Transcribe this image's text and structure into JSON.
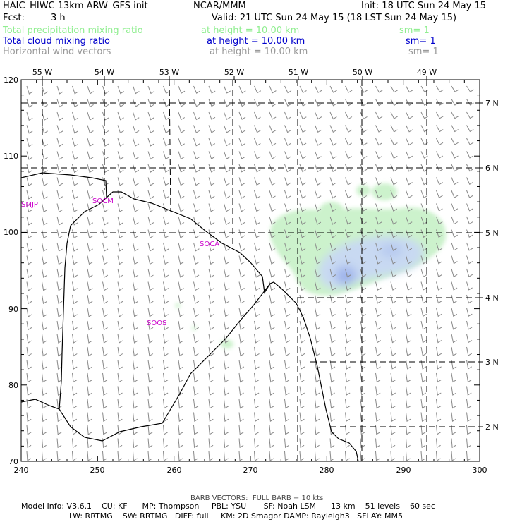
{
  "header": {
    "model_title": "HAIC–HIWC 13km ARW–GFS init",
    "org": "NCAR/MMM",
    "init": "Init: 18 UTC Sun 24 May 15",
    "fcst_label": "Fcst:",
    "fcst_value": "3 h",
    "valid": "Valid: 21 UTC Sun 24 May 15 (18 LST Sun 24 May 15)"
  },
  "fields": [
    {
      "name": "Total precipitation mixing ratio",
      "height": "at height = 10.00 km",
      "sm": "sm= 1",
      "color": "#90ee90"
    },
    {
      "name": "Total cloud mixing ratio",
      "height": "at height = 10.00 km",
      "sm": "sm= 1",
      "color": "#0000cc"
    },
    {
      "name": "Horizontal wind vectors",
      "height": "at height = 10.00 km",
      "sm": "sm= 1",
      "color": "#999999"
    }
  ],
  "map": {
    "x_ticks": [
      "240",
      "250",
      "260",
      "270",
      "280",
      "290",
      "300"
    ],
    "y_ticks": [
      "70",
      "80",
      "90",
      "100",
      "110",
      "120"
    ],
    "lon_labels": [
      "55 W",
      "54 W",
      "53 W",
      "52 W",
      "51 W",
      "50 W",
      "49 W"
    ],
    "lat_labels": [
      "7 N",
      "6 N",
      "5 N",
      "4 N",
      "3 N",
      "2 N"
    ],
    "stations": [
      "SMJP",
      "SOCM",
      "SOCA",
      "SOOS"
    ]
  },
  "footer": {
    "barb": "BARB VECTORS:  FULL BARB = 10 kts",
    "model_info": "Model Info: V3.6.1    CU: KF      MP: Thompson     PBL: YSU       SF: Noah LSM      13 km    51 levels    60 sec",
    "model_info2": "LW: RRTMG    SW: RRTMG   DIFF: full     KM: 2D Smagor DAMP: Rayleigh3   SFLAY: MM5"
  }
}
